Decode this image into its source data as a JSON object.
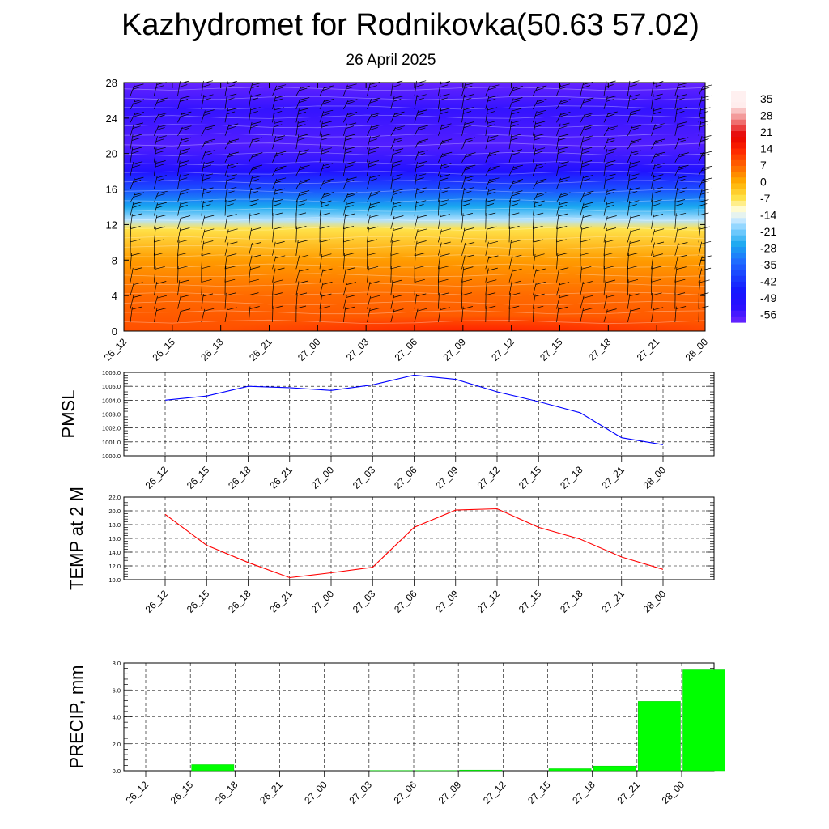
{
  "title": "Kazhydromet for Rodnikovka(50.63 57.02)",
  "subtitle": "26 April 2025",
  "chart_data": [
    {
      "type": "heatmap",
      "name": "vertical-profile",
      "categories": [
        "26_12",
        "26_15",
        "26_18",
        "26_21",
        "27_00",
        "27_03",
        "27_06",
        "27_09",
        "27_12",
        "27_15",
        "27_18",
        "27_21",
        "28_00"
      ],
      "y_ticks": [
        0,
        4,
        8,
        12,
        16,
        20,
        24,
        28
      ],
      "ylim": [
        0,
        28
      ],
      "colorbar_labels": [
        "35",
        "28",
        "21",
        "14",
        "7",
        "0",
        "-7",
        "-14",
        "-21",
        "-28",
        "-35",
        "-42",
        "-49",
        "-56"
      ],
      "temperature_profile": [
        {
          "y": 0,
          "value": 10
        },
        {
          "y": 4,
          "value": 7
        },
        {
          "y": 8,
          "value": 2
        },
        {
          "y": 11.5,
          "value": -7
        },
        {
          "y": 12.5,
          "value": -18
        },
        {
          "y": 14,
          "value": -28
        },
        {
          "y": 16,
          "value": -40
        },
        {
          "y": 18,
          "value": -53
        },
        {
          "y": 21,
          "value": -60
        },
        {
          "y": 25,
          "value": -57
        },
        {
          "y": 28,
          "value": -62
        }
      ],
      "colors": {
        "warm": "#ff1a00",
        "orange": "#ff8c00",
        "yellow": "#fff08a",
        "light": "#e8f4ff",
        "cyan": "#33b5ff",
        "blue": "#1a1aff",
        "purple": "#7a2bff"
      }
    },
    {
      "type": "line",
      "name": "pmsl",
      "ylabel": "PMSL",
      "categories": [
        "26_12",
        "26_15",
        "26_18",
        "26_21",
        "27_00",
        "27_03",
        "27_06",
        "27_09",
        "27_12",
        "27_15",
        "27_18",
        "27_21",
        "28_00"
      ],
      "y_ticks": [
        "1000.0",
        "1001.0",
        "1002.0",
        "1003.0",
        "1004.0",
        "1005.0",
        "1006.0"
      ],
      "ylim": [
        1000,
        1006
      ],
      "series": [
        {
          "values": [
            1004.0,
            1004.3,
            1005.0,
            1004.9,
            1004.7,
            1005.1,
            1005.8,
            1005.5,
            1004.6,
            1003.9,
            1003.1,
            1001.3,
            1000.8
          ]
        }
      ],
      "color": "#0000ff"
    },
    {
      "type": "line",
      "name": "temp",
      "ylabel": "TEMP at 2 M",
      "categories": [
        "26_12",
        "26_15",
        "26_18",
        "26_21",
        "27_00",
        "27_03",
        "27_06",
        "27_09",
        "27_12",
        "27_15",
        "27_18",
        "27_21",
        "28_00"
      ],
      "y_ticks": [
        "10.0",
        "12.0",
        "14.0",
        "16.0",
        "18.0",
        "20.0",
        "22.0"
      ],
      "ylim": [
        10,
        22
      ],
      "series": [
        {
          "values": [
            19.5,
            15.0,
            12.5,
            10.3,
            11.0,
            11.8,
            17.6,
            20.1,
            20.3,
            17.6,
            15.9,
            13.3,
            11.5
          ]
        }
      ],
      "color": "#ff0000"
    },
    {
      "type": "bar",
      "name": "precip",
      "ylabel": "PRECIP, mm",
      "categories": [
        "26_12",
        "26_15",
        "26_18",
        "26_21",
        "27_00",
        "27_03",
        "27_06",
        "27_09",
        "27_12",
        "27_15",
        "27_18",
        "27_21",
        "28_00"
      ],
      "y_ticks": [
        "0.0",
        "2.0",
        "4.0",
        "6.0",
        "8.0"
      ],
      "ylim": [
        0,
        8
      ],
      "values": [
        0.0,
        0.45,
        0.0,
        0.0,
        0.0,
        0.02,
        0.02,
        0.05,
        0.0,
        0.15,
        0.35,
        5.15,
        7.55
      ],
      "color": "#00ff00"
    }
  ]
}
